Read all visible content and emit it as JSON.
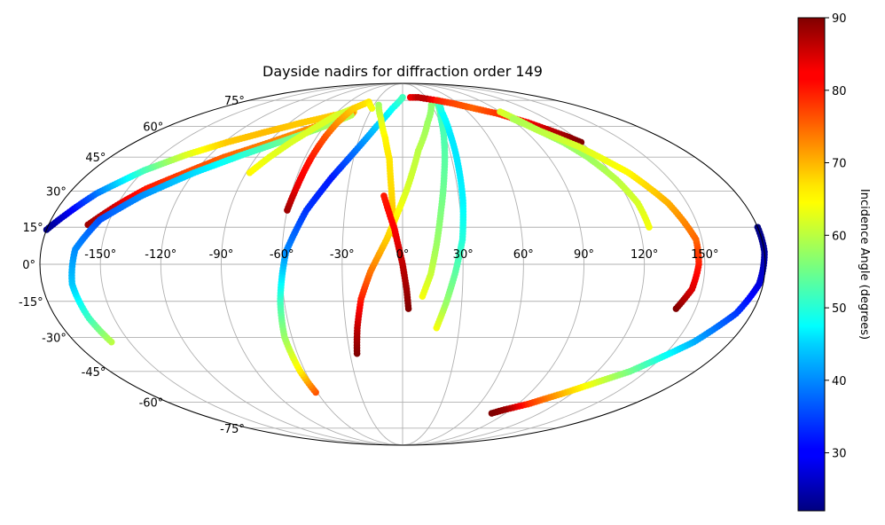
{
  "chart_data": {
    "type": "scatter",
    "projection": "mollweide",
    "title": "Dayside nadirs for diffraction order 149",
    "xaxis_ticks": [
      "-150°",
      "-120°",
      "-90°",
      "-60°",
      "-30°",
      "0°",
      "30°",
      "60°",
      "90°",
      "120°",
      "150°"
    ],
    "xaxis_tick_values": [
      -150,
      -120,
      -90,
      -60,
      -30,
      0,
      30,
      60,
      90,
      120,
      150
    ],
    "yaxis_ticks": [
      "-75°",
      "-60°",
      "-45°",
      "-30°",
      "-15°",
      "0°",
      "15°",
      "30°",
      "45°",
      "60°",
      "75°"
    ],
    "yaxis_tick_values": [
      -75,
      -60,
      -45,
      -30,
      -15,
      0,
      15,
      30,
      45,
      60,
      75
    ],
    "grid": true,
    "colorbar": {
      "label": "Incidence Angle (degrees)",
      "min": 22,
      "max": 90,
      "ticks": [
        "30",
        "40",
        "50",
        "60",
        "70",
        "80",
        "90"
      ],
      "tick_values": [
        30,
        40,
        50,
        60,
        70,
        80,
        90
      ],
      "colormap": "jet"
    },
    "series": [
      {
        "points": [
          [
            -180,
            14,
            22
          ],
          [
            -172,
            22,
            30
          ],
          [
            -165,
            29,
            38
          ],
          [
            -150,
            39,
            52
          ],
          [
            -135,
            46,
            62
          ],
          [
            -118,
            52,
            68
          ],
          [
            -100,
            57,
            69
          ],
          [
            -80,
            62,
            68
          ],
          [
            -60,
            66,
            68
          ],
          [
            -45,
            68,
            68
          ]
        ]
      },
      {
        "points": [
          [
            -160,
            16,
            88
          ],
          [
            -150,
            24,
            84
          ],
          [
            -140,
            31,
            80
          ],
          [
            -125,
            38,
            77
          ],
          [
            -110,
            45,
            75
          ],
          [
            -92,
            51,
            73
          ],
          [
            -75,
            57,
            72
          ],
          [
            -58,
            63,
            72
          ],
          [
            -45,
            67,
            72
          ]
        ]
      },
      {
        "points": [
          [
            -160,
            -32,
            60
          ],
          [
            -163,
            -22,
            52
          ],
          [
            -165,
            -8,
            44
          ],
          [
            -163,
            6,
            40
          ],
          [
            -155,
            18,
            36
          ],
          [
            -140,
            28,
            40
          ],
          [
            -120,
            38,
            45
          ],
          [
            -100,
            46,
            50
          ],
          [
            -80,
            53,
            55
          ],
          [
            -60,
            60,
            58
          ],
          [
            -45,
            66,
            60
          ]
        ]
      },
      {
        "points": [
          [
            -88,
            38,
            65
          ],
          [
            -82,
            45,
            63
          ],
          [
            -75,
            52,
            62
          ],
          [
            -68,
            58,
            62
          ],
          [
            -58,
            66,
            62
          ],
          [
            -48,
            70,
            61
          ]
        ]
      },
      {
        "points": [
          [
            -60,
            22,
            88
          ],
          [
            -58,
            32,
            83
          ],
          [
            -56,
            45,
            80
          ],
          [
            -54,
            55,
            76
          ],
          [
            -52,
            62,
            72
          ],
          [
            -48,
            70,
            68
          ],
          [
            -38,
            74,
            66
          ],
          [
            -30,
            70,
            64
          ]
        ]
      },
      {
        "points": [
          [
            -61,
            -55,
            76
          ],
          [
            -63,
            -45,
            66
          ],
          [
            -64,
            -30,
            58
          ],
          [
            -62,
            -15,
            52
          ],
          [
            -58,
            5,
            40
          ],
          [
            -50,
            22,
            34
          ],
          [
            -40,
            36,
            32
          ],
          [
            -30,
            48,
            38
          ],
          [
            -20,
            60,
            44
          ],
          [
            -10,
            70,
            48
          ],
          [
            0,
            77,
            52
          ]
        ]
      },
      {
        "points": [
          [
            -25,
            72,
            58
          ],
          [
            -18,
            64,
            62
          ],
          [
            -12,
            54,
            65
          ],
          [
            -8,
            44,
            66
          ],
          [
            -6,
            30,
            67
          ],
          [
            -5,
            20,
            68
          ],
          [
            -4,
            12,
            70
          ]
        ]
      },
      {
        "points": [
          [
            -26,
            -37,
            90
          ],
          [
            -24,
            -26,
            86
          ],
          [
            -21,
            -14,
            80
          ],
          [
            -16,
            -3,
            74
          ],
          [
            -8,
            10,
            68
          ],
          [
            2,
            30,
            62
          ],
          [
            10,
            48,
            60
          ],
          [
            20,
            62,
            58
          ],
          [
            30,
            72,
            57
          ],
          [
            38,
            75,
            56
          ]
        ]
      },
      {
        "points": [
          [
            10,
            -13,
            64
          ],
          [
            14,
            -4,
            61
          ],
          [
            17,
            8,
            58
          ],
          [
            20,
            22,
            56
          ],
          [
            24,
            38,
            54
          ],
          [
            28,
            52,
            53
          ],
          [
            32,
            64,
            52
          ],
          [
            37,
            72,
            54
          ],
          [
            42,
            75,
            56
          ]
        ]
      },
      {
        "points": [
          [
            18,
            -26,
            64
          ],
          [
            22,
            -16,
            58
          ],
          [
            26,
            -4,
            54
          ],
          [
            30,
            10,
            50
          ],
          [
            32,
            26,
            47
          ],
          [
            33,
            42,
            46
          ],
          [
            34,
            56,
            46
          ],
          [
            36,
            68,
            48
          ],
          [
            40,
            74,
            52
          ]
        ]
      },
      {
        "points": [
          [
            3,
            -18,
            90
          ],
          [
            2,
            -10,
            88
          ],
          [
            0,
            0,
            86
          ],
          [
            -4,
            14,
            82
          ],
          [
            -10,
            28,
            80
          ]
        ]
      },
      {
        "points": [
          [
            10,
            77,
            82
          ],
          [
            20,
            77,
            86
          ],
          [
            30,
            76,
            86
          ],
          [
            40,
            75,
            80
          ],
          [
            55,
            73,
            77
          ],
          [
            70,
            70,
            75
          ],
          [
            85,
            67,
            78
          ],
          [
            100,
            62,
            82
          ],
          [
            115,
            55,
            88
          ],
          [
            120,
            52,
            90
          ]
        ]
      },
      {
        "points": [
          [
            125,
            15,
            64
          ],
          [
            124,
            25,
            62
          ],
          [
            120,
            35,
            60
          ],
          [
            114,
            45,
            58
          ],
          [
            108,
            52,
            58
          ],
          [
            100,
            58,
            58
          ],
          [
            94,
            64,
            60
          ],
          [
            90,
            68,
            62
          ]
        ]
      },
      {
        "points": [
          [
            140,
            -18,
            90
          ],
          [
            145,
            -10,
            84
          ],
          [
            147,
            0,
            80
          ],
          [
            147,
            10,
            75
          ],
          [
            140,
            25,
            70
          ],
          [
            130,
            38,
            65
          ],
          [
            115,
            50,
            62
          ],
          [
            100,
            58,
            60
          ],
          [
            92,
            64,
            59
          ]
        ]
      },
      {
        "points": [
          [
            180,
            15,
            22
          ],
          [
            180,
            5,
            24
          ],
          [
            178,
            -8,
            28
          ],
          [
            172,
            -20,
            34
          ],
          [
            160,
            -32,
            42
          ],
          [
            140,
            -45,
            55
          ],
          [
            115,
            -55,
            68
          ],
          [
            98,
            -61,
            78
          ],
          [
            85,
            -64,
            88
          ],
          [
            78,
            -66,
            90
          ]
        ]
      }
    ]
  }
}
